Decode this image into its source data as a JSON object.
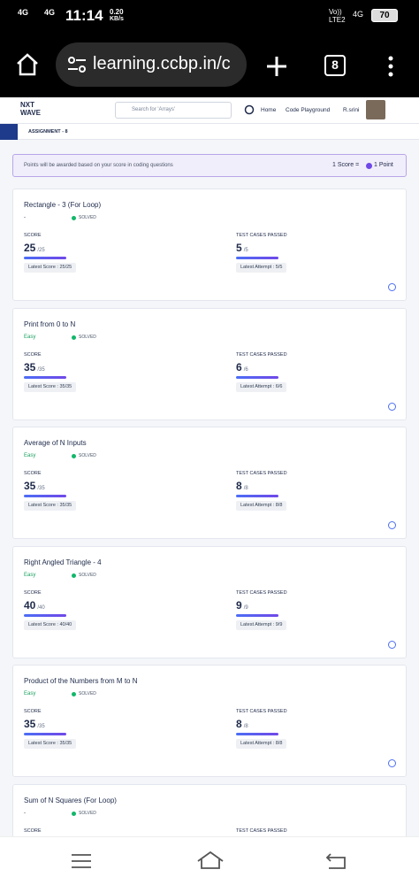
{
  "status_bar": {
    "network_left": [
      "4G",
      "4G"
    ],
    "time": "11:14",
    "speed": "0.20",
    "speed_unit": "KB/s",
    "network_right": [
      "Vo))",
      "LTE2",
      "4G"
    ],
    "battery": "70"
  },
  "browser": {
    "url": "learning.ccbp.in/c",
    "tab_count": "8"
  },
  "header": {
    "logo_top": "NXT",
    "logo_bottom": "WAVE",
    "search_placeholder": "Search for 'Arrays'",
    "nav": [
      "Home",
      "Code Playground"
    ],
    "user": "R.srini"
  },
  "breadcrumb": "ASSIGNMENT - 8",
  "banner": {
    "text": "Points will be awarded based on your score in coding questions",
    "rule_left": "1 Score =",
    "rule_right": "1 Point"
  },
  "cards": [
    {
      "title": "Rectangle - 3 (For Loop)",
      "difficulty": "-",
      "status": "SOLVED",
      "score_label": "SCORE",
      "score": "25",
      "score_max": "/25",
      "latest_score": "Latest Score : 25/25",
      "tests_label": "TEST CASES PASSED",
      "tests": "5",
      "tests_max": "/5",
      "latest_attempt": "Latest Attempt : 5/5"
    },
    {
      "title": "Print from 0 to N",
      "difficulty": "Easy",
      "status": "SOLVED",
      "score_label": "SCORE",
      "score": "35",
      "score_max": "/35",
      "latest_score": "Latest Score : 35/35",
      "tests_label": "TEST CASES PASSED",
      "tests": "6",
      "tests_max": "/6",
      "latest_attempt": "Latest Attempt : 6/6"
    },
    {
      "title": "Average of N Inputs",
      "difficulty": "Easy",
      "status": "SOLVED",
      "score_label": "SCORE",
      "score": "35",
      "score_max": "/35",
      "latest_score": "Latest Score : 35/35",
      "tests_label": "TEST CASES PASSED",
      "tests": "8",
      "tests_max": "/8",
      "latest_attempt": "Latest Attempt : 8/8"
    },
    {
      "title": "Right Angled Triangle - 4",
      "difficulty": "Easy",
      "status": "SOLVED",
      "score_label": "SCORE",
      "score": "40",
      "score_max": "/40",
      "latest_score": "Latest Score : 40/40",
      "tests_label": "TEST CASES PASSED",
      "tests": "9",
      "tests_max": "/9",
      "latest_attempt": "Latest Attempt : 9/9"
    },
    {
      "title": "Product of the Numbers from M to N",
      "difficulty": "Easy",
      "status": "SOLVED",
      "score_label": "SCORE",
      "score": "35",
      "score_max": "/35",
      "latest_score": "Latest Score : 35/35",
      "tests_label": "TEST CASES PASSED",
      "tests": "8",
      "tests_max": "/8",
      "latest_attempt": "Latest Attempt : 8/8"
    },
    {
      "title": "Sum of N Squares (For Loop)",
      "difficulty": "-",
      "status": "SOLVED",
      "score_label": "SCORE",
      "tests_label": "TEST CASES PASSED"
    }
  ]
}
